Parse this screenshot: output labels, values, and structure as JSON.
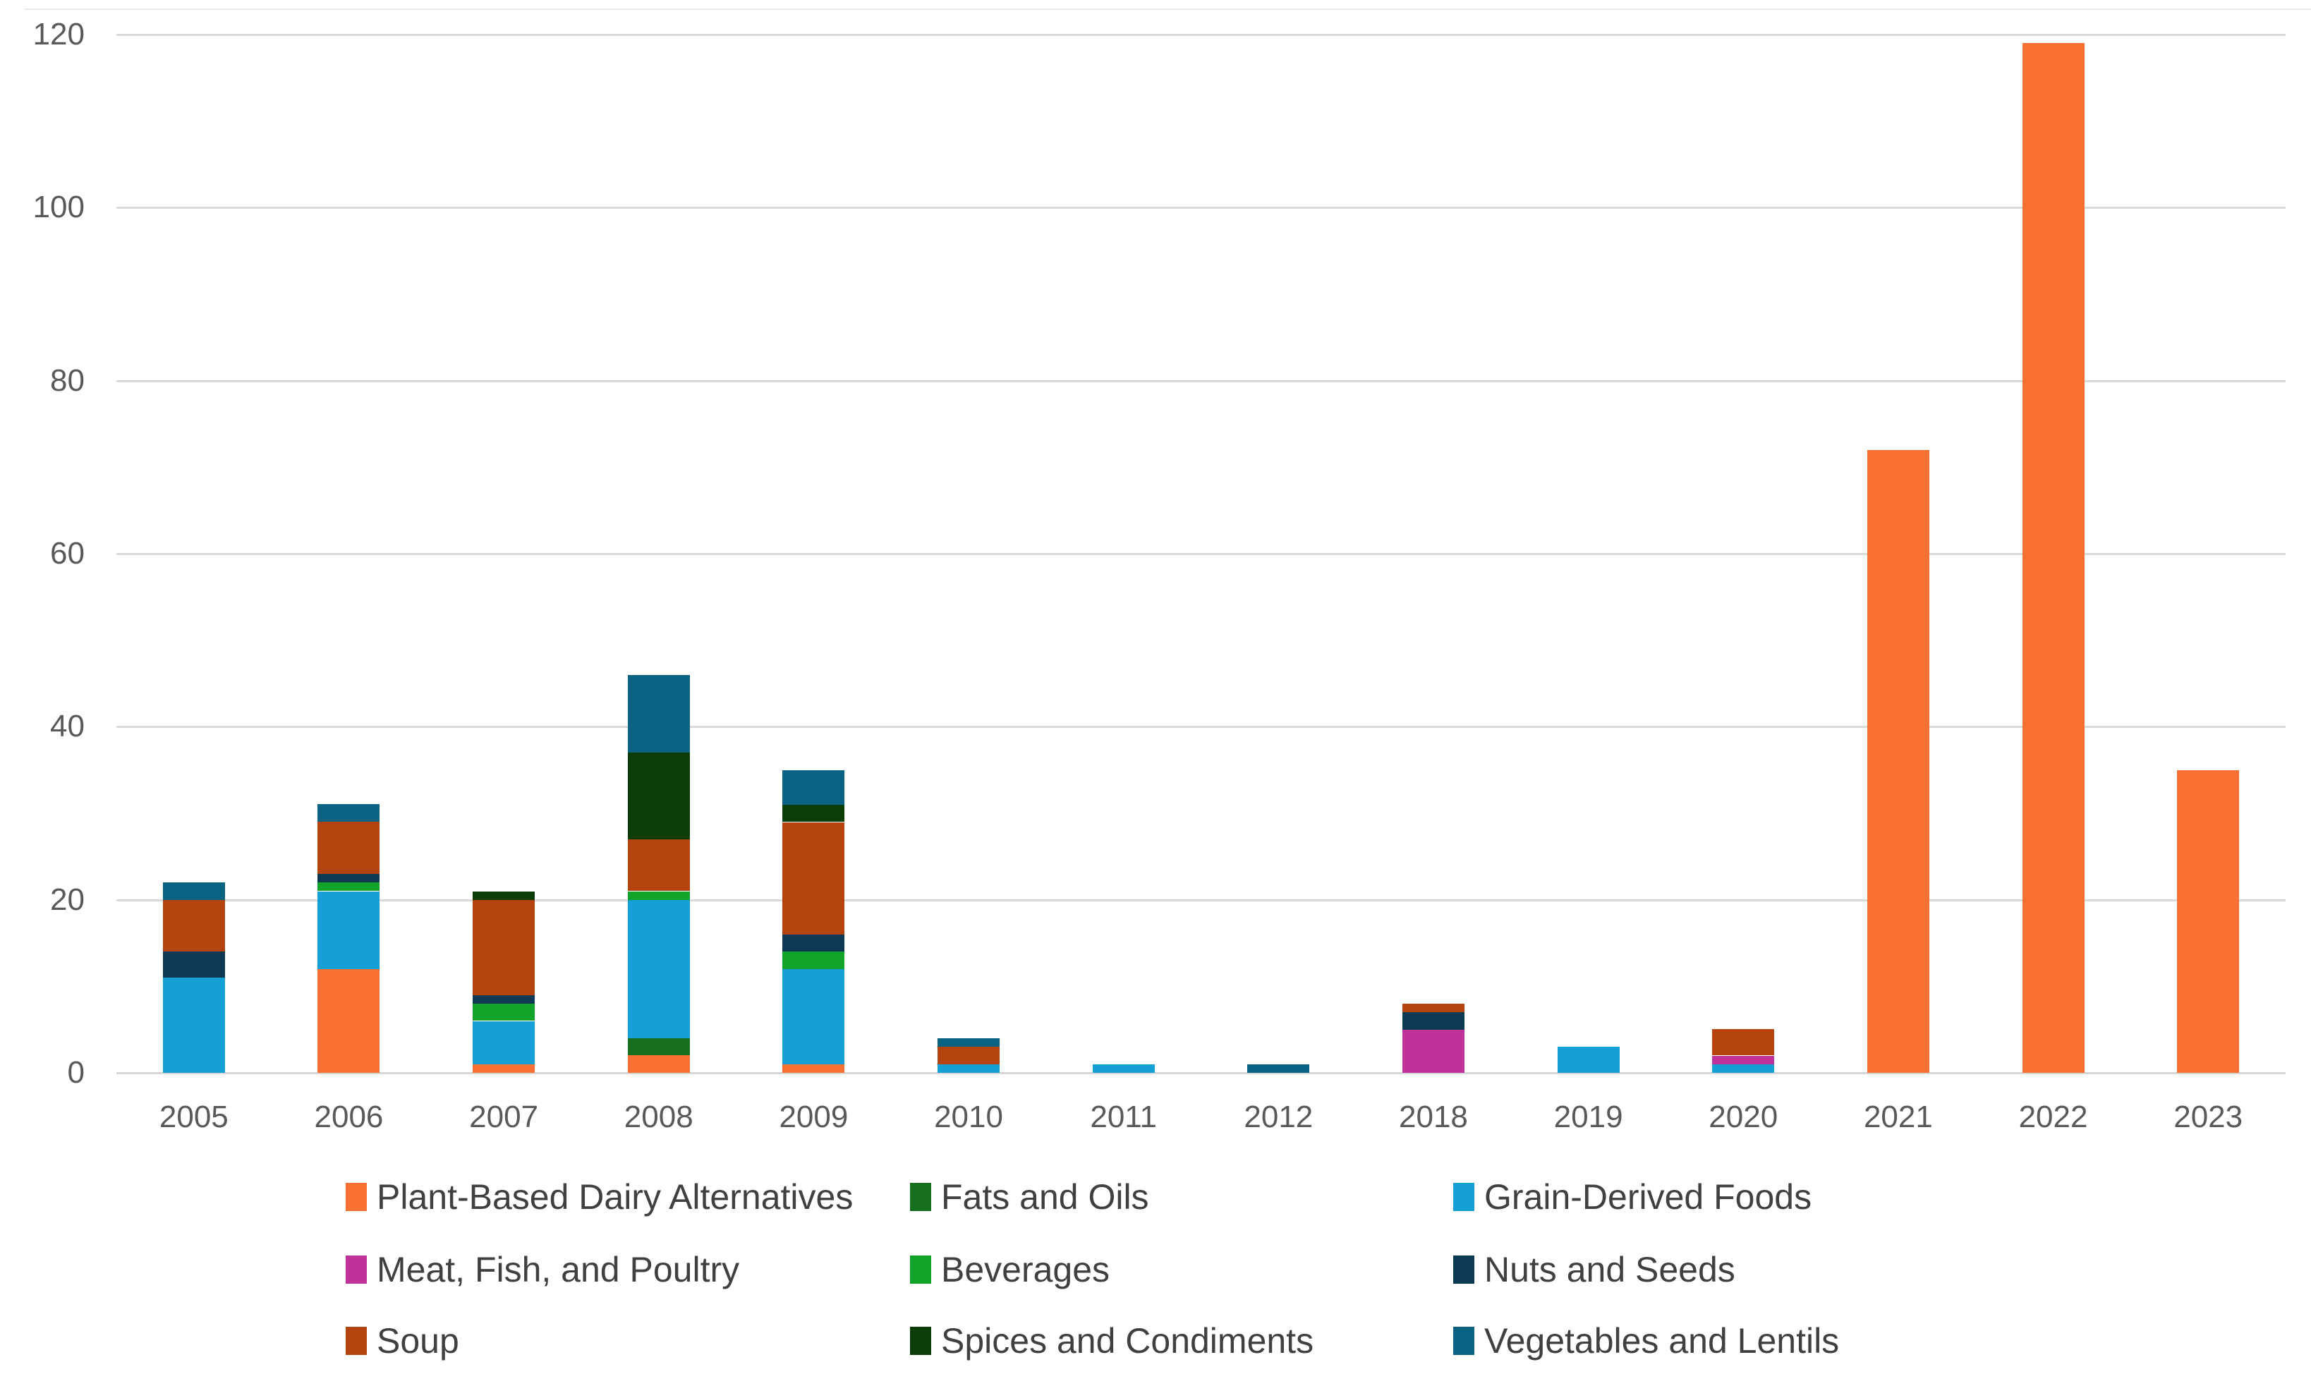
{
  "chart_data": {
    "type": "bar",
    "stacked": true,
    "title": "",
    "xlabel": "",
    "ylabel": "",
    "categories": [
      "2005",
      "2006",
      "2007",
      "2008",
      "2009",
      "2010",
      "2011",
      "2012",
      "2018",
      "2019",
      "2020",
      "2021",
      "2022",
      "2023"
    ],
    "series": [
      {
        "name": "Plant-Based Dairy Alternatives",
        "color": "#F97132",
        "values": [
          0,
          12,
          1,
          2,
          1,
          0,
          0,
          0,
          0,
          0,
          0,
          72,
          119,
          35
        ]
      },
      {
        "name": "Fats and Oils",
        "color": "#17701F",
        "values": [
          0,
          0,
          0,
          2,
          0,
          0,
          0,
          0,
          0,
          0,
          0,
          0,
          0,
          0
        ]
      },
      {
        "name": "Grain-Derived Foods",
        "color": "#14A0D7",
        "values": [
          11,
          9,
          5,
          16,
          11,
          1,
          1,
          0,
          0,
          3,
          1,
          0,
          0,
          0
        ]
      },
      {
        "name": "Meat, Fish, and Poultry",
        "color": "#BE3299",
        "values": [
          0,
          0,
          0,
          0,
          0,
          0,
          0,
          0,
          5,
          0,
          1,
          0,
          0,
          0
        ]
      },
      {
        "name": "Beverages",
        "color": "#12A42A",
        "values": [
          0,
          1,
          2,
          1,
          2,
          0,
          0,
          0,
          0,
          0,
          0,
          0,
          0,
          0
        ]
      },
      {
        "name": "Nuts and Seeds",
        "color": "#0D3A52",
        "values": [
          3,
          1,
          1,
          0,
          2,
          0,
          0,
          0,
          2,
          0,
          0,
          0,
          0,
          0
        ]
      },
      {
        "name": "Soup",
        "color": "#B4430D",
        "values": [
          6,
          6,
          11,
          6,
          13,
          2,
          0,
          0,
          1,
          0,
          3,
          0,
          0,
          0
        ]
      },
      {
        "name": "Spices and Condiments",
        "color": "#0C3D07",
        "values": [
          0,
          0,
          1,
          10,
          2,
          0,
          0,
          0,
          0,
          0,
          0,
          0,
          0,
          0
        ]
      },
      {
        "name": "Vegetables and Lentils",
        "color": "#0A6382",
        "values": [
          2,
          2,
          0,
          9,
          4,
          1,
          0,
          1,
          0,
          0,
          0,
          0,
          0,
          0
        ]
      }
    ],
    "totals": [
      22,
      31,
      21,
      46,
      35,
      4,
      1,
      1,
      8,
      3,
      5,
      72,
      119,
      35
    ],
    "y_axis": {
      "ticks": [
        0,
        20,
        40,
        60,
        80,
        100,
        120
      ],
      "min": 0,
      "max": 120
    },
    "grid": true,
    "legend_position": "bottom",
    "legend_rows": [
      [
        "Plant-Based Dairy Alternatives",
        "Fats and Oils",
        "Grain-Derived Foods"
      ],
      [
        "Meat, Fish, and Poultry",
        "Beverages",
        "Nuts and Seeds"
      ],
      [
        "Soup",
        "Spices and Condiments",
        "Vegetables and Lentils"
      ]
    ],
    "colors": {
      "axis_text": "#595959",
      "legend_text": "#404040",
      "gridline": "#D9D9D9"
    }
  }
}
